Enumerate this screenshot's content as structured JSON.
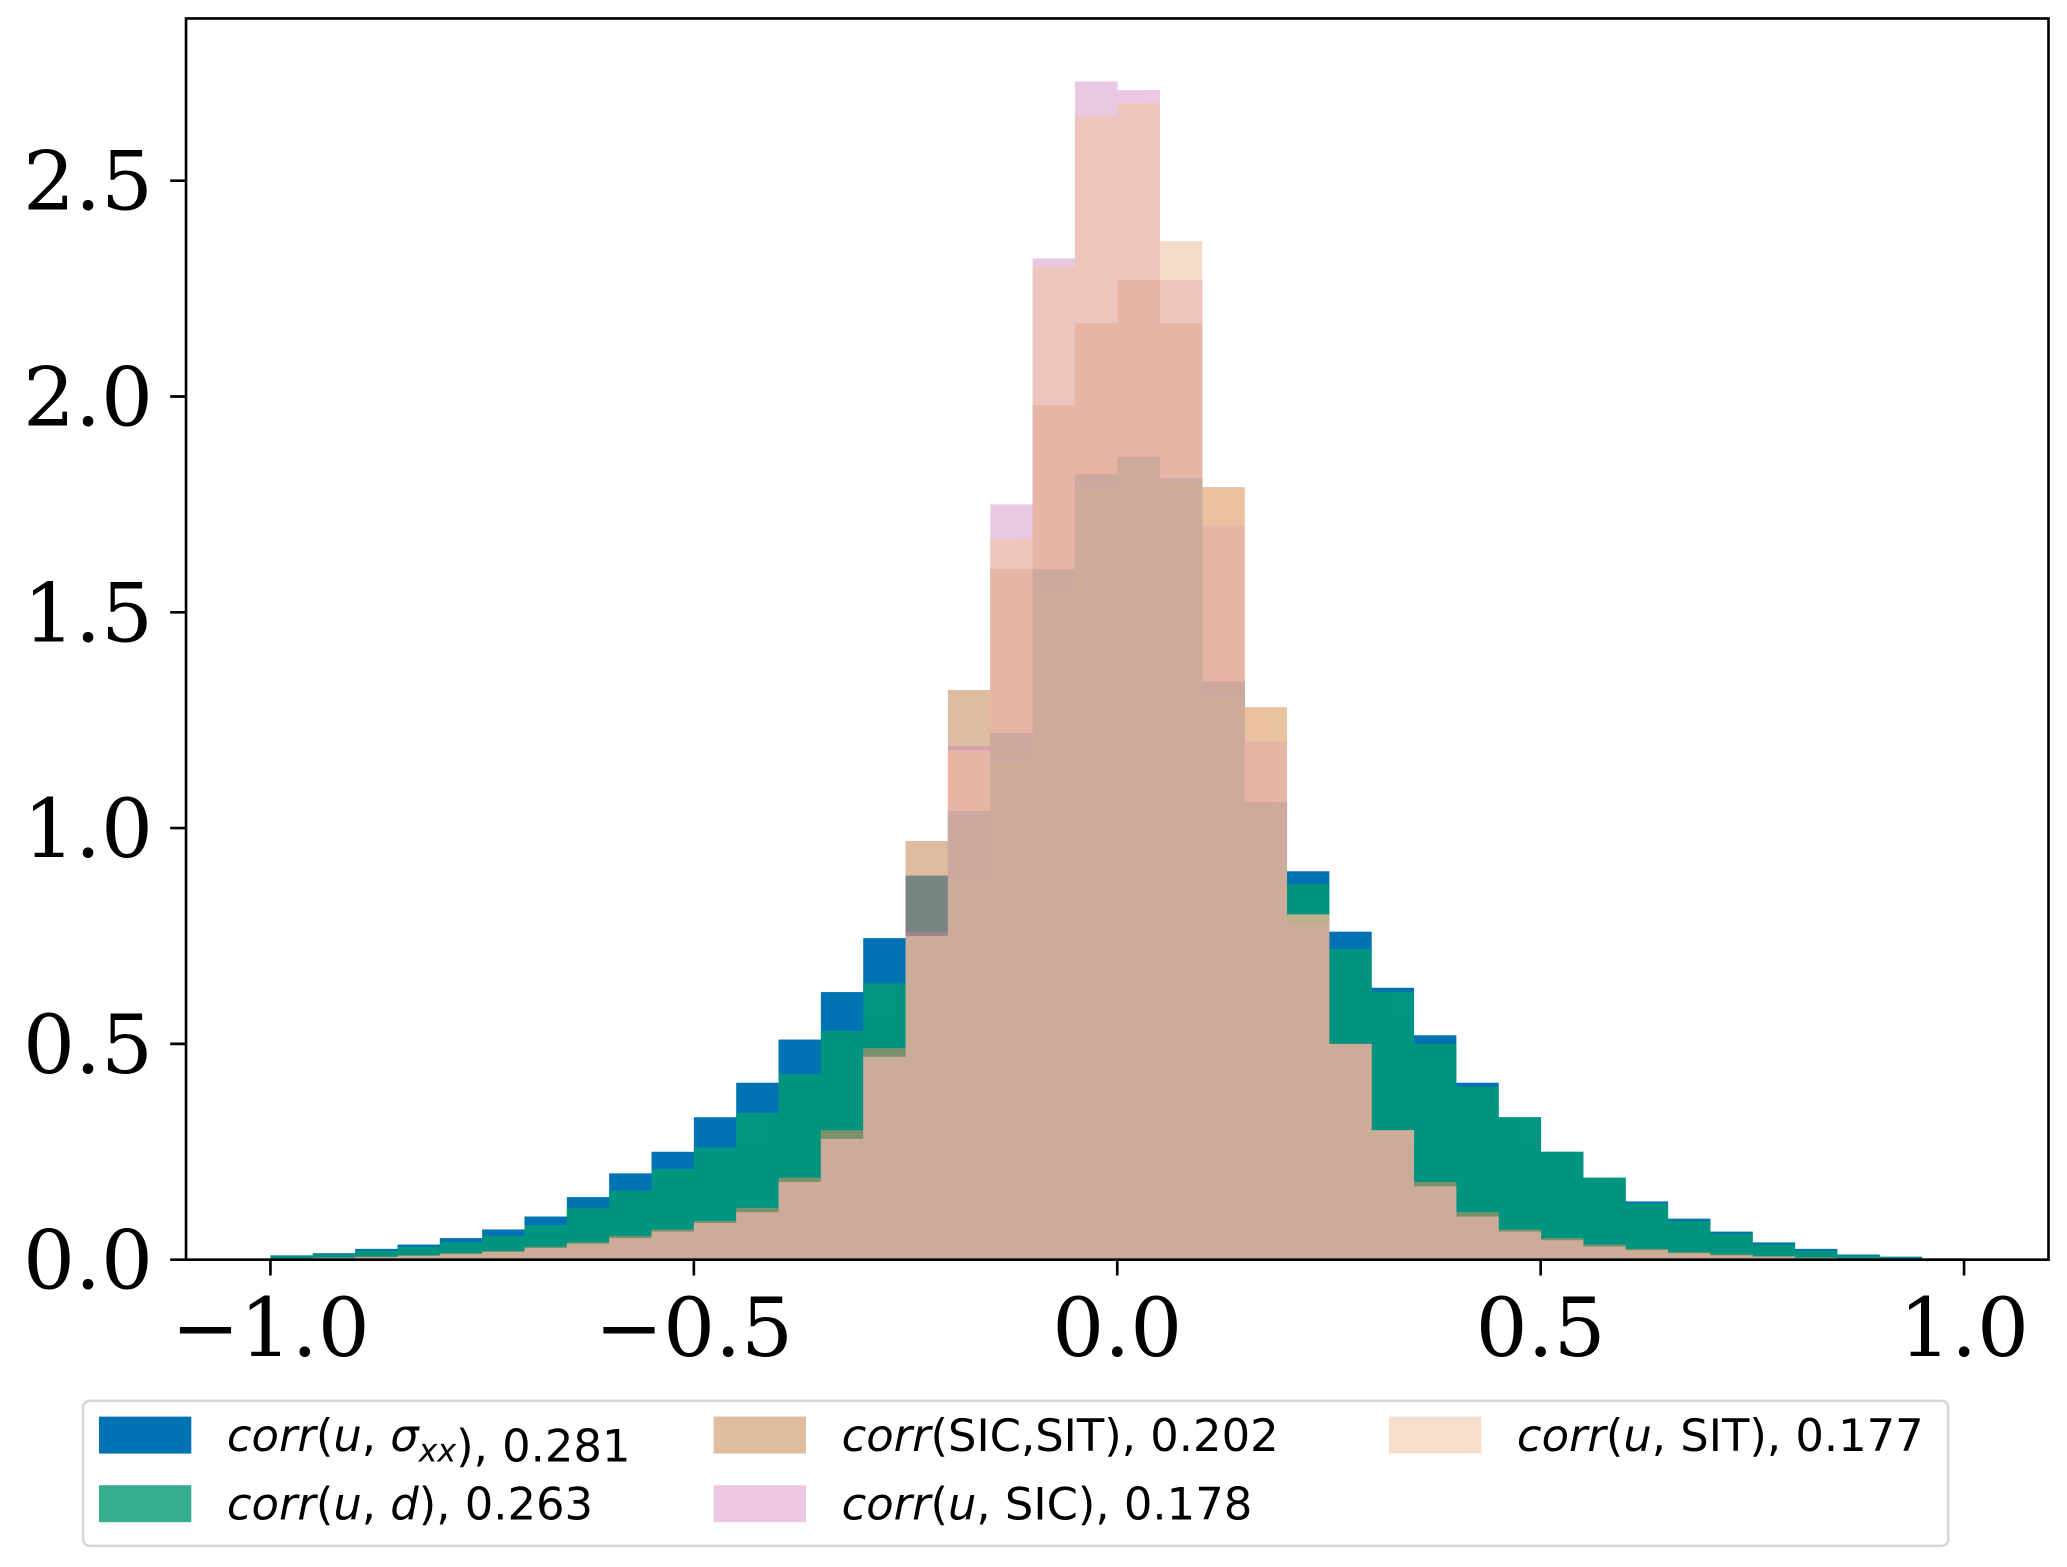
{
  "chart_data": {
    "type": "histogram",
    "title": "",
    "xlabel": "",
    "ylabel": "",
    "xlim": [
      -1.1,
      1.1
    ],
    "ylim": [
      0,
      2.87
    ],
    "bin_edges_start": -1.0,
    "bin_width": 0.05,
    "grid": false,
    "legend_placement": "bottom",
    "x_ticks": [
      "−1.0",
      "−0.5",
      "0.0",
      "0.5",
      "1.0"
    ],
    "x_tick_values": [
      -1.0,
      -0.5,
      0.0,
      0.5,
      1.0
    ],
    "y_ticks": [
      "0.0",
      "0.5",
      "1.0",
      "1.5",
      "2.0",
      "2.5"
    ],
    "y_tick_values": [
      0,
      0.5,
      1.0,
      1.5,
      2.0,
      2.5
    ],
    "series": [
      {
        "name": "corr(u, σxx), 0.281",
        "color": "#0173b2",
        "opacity": 1.0,
        "label_parts": [
          [
            "corr",
            "i"
          ],
          [
            "(",
            "n"
          ],
          [
            "u",
            "i"
          ],
          [
            ", ",
            "n"
          ],
          [
            "σ",
            "i"
          ],
          [
            "xx",
            "sub"
          ],
          [
            "), 0.281",
            "n"
          ]
        ],
        "values": [
          0.01,
          0.015,
          0.025,
          0.035,
          0.05,
          0.07,
          0.1,
          0.145,
          0.2,
          0.25,
          0.33,
          0.41,
          0.51,
          0.62,
          0.745,
          0.89,
          1.04,
          1.22,
          1.6,
          1.82,
          1.86,
          1.81,
          1.34,
          1.06,
          0.9,
          0.76,
          0.63,
          0.52,
          0.41,
          0.33,
          0.25,
          0.19,
          0.135,
          0.095,
          0.065,
          0.04,
          0.025,
          0.012,
          0.007,
          0.003
        ]
      },
      {
        "name": "corr(u, d), 0.263",
        "color": "#029e73",
        "opacity": 0.8,
        "label_parts": [
          [
            "corr",
            "i"
          ],
          [
            "(",
            "n"
          ],
          [
            "u",
            "i"
          ],
          [
            ", ",
            "n"
          ],
          [
            "d",
            "i"
          ],
          [
            "), 0.263",
            "n"
          ]
        ],
        "values": [
          0.008,
          0.012,
          0.02,
          0.03,
          0.04,
          0.055,
          0.08,
          0.12,
          0.16,
          0.21,
          0.26,
          0.34,
          0.43,
          0.53,
          0.64,
          0.76,
          0.88,
          1.15,
          1.55,
          1.78,
          1.85,
          1.8,
          1.3,
          1.05,
          0.87,
          0.72,
          0.62,
          0.5,
          0.4,
          0.33,
          0.25,
          0.19,
          0.13,
          0.09,
          0.06,
          0.035,
          0.02,
          0.01,
          0.005,
          0.002
        ]
      },
      {
        "name": "corr(SIC,SIT), 0.202",
        "color": "#ca9161",
        "opacity": 0.6,
        "label_parts": [
          [
            "corr",
            "i"
          ],
          [
            "(SIC,SIT), 0.202",
            "n"
          ]
        ],
        "values": [
          0.003,
          0.005,
          0.007,
          0.01,
          0.015,
          0.02,
          0.03,
          0.04,
          0.055,
          0.07,
          0.09,
          0.12,
          0.19,
          0.3,
          0.49,
          0.97,
          1.32,
          1.6,
          1.98,
          2.17,
          2.27,
          2.17,
          1.79,
          1.28,
          0.8,
          0.5,
          0.3,
          0.18,
          0.11,
          0.07,
          0.05,
          0.035,
          0.025,
          0.017,
          0.012,
          0.008,
          0.005,
          0.003,
          0.002,
          0.001
        ]
      },
      {
        "name": "corr(u, SIC), 0.178",
        "color": "#cc78bc",
        "opacity": 0.4,
        "label_parts": [
          [
            "corr",
            "i"
          ],
          [
            "(",
            "n"
          ],
          [
            "u",
            "i"
          ],
          [
            ", SIC), 0.178",
            "n"
          ]
        ],
        "values": [
          0.002,
          0.004,
          0.006,
          0.009,
          0.013,
          0.018,
          0.027,
          0.037,
          0.05,
          0.065,
          0.085,
          0.11,
          0.18,
          0.28,
          0.47,
          0.76,
          1.19,
          1.75,
          2.32,
          2.73,
          2.71,
          2.27,
          1.7,
          1.2,
          0.78,
          0.5,
          0.3,
          0.17,
          0.1,
          0.065,
          0.045,
          0.03,
          0.022,
          0.015,
          0.01,
          0.007,
          0.004,
          0.003,
          0.002,
          0.001
        ]
      },
      {
        "name": "corr(u, SIT), 0.177",
        "color": "#f0c4a2",
        "opacity": 0.6,
        "label_parts": [
          [
            "corr",
            "i"
          ],
          [
            "(",
            "n"
          ],
          [
            "u",
            "i"
          ],
          [
            ", SIT), 0.177",
            "n"
          ]
        ],
        "values": [
          0.002,
          0.004,
          0.006,
          0.009,
          0.013,
          0.018,
          0.027,
          0.037,
          0.05,
          0.065,
          0.085,
          0.11,
          0.18,
          0.28,
          0.47,
          0.75,
          1.18,
          1.67,
          2.3,
          2.65,
          2.68,
          2.36,
          1.79,
          1.28,
          0.8,
          0.5,
          0.3,
          0.17,
          0.1,
          0.065,
          0.045,
          0.03,
          0.022,
          0.015,
          0.01,
          0.007,
          0.004,
          0.003,
          0.002,
          0.001
        ]
      }
    ]
  }
}
